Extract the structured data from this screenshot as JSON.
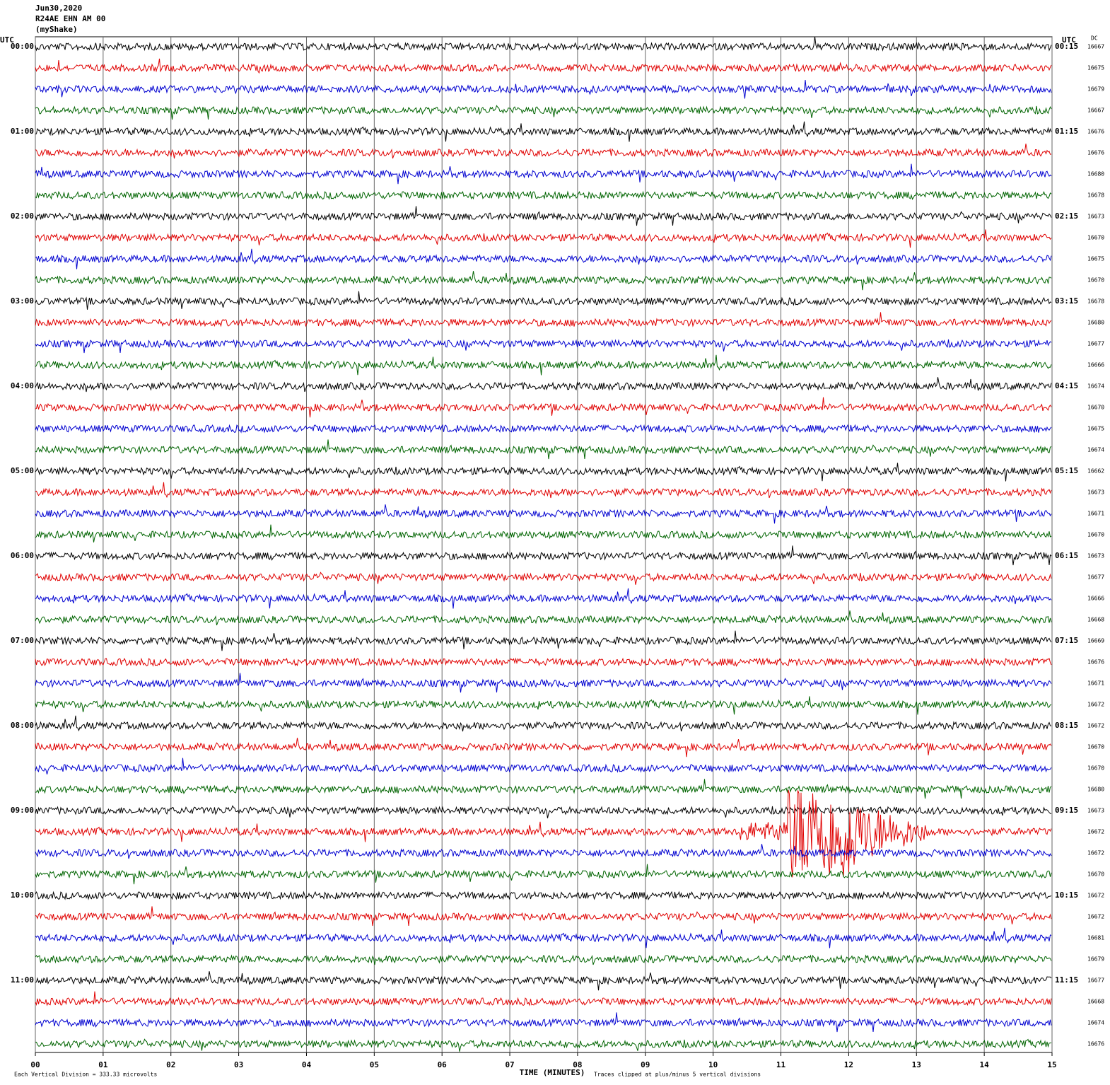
{
  "header": {
    "date": "Jun30,2020",
    "station": "R24AE EHN AM 00",
    "network": "(myShake)"
  },
  "left_axis": {
    "title": "UTC",
    "labels": [
      "00:00",
      "01:00",
      "02:00",
      "03:00",
      "04:00",
      "05:00",
      "06:00",
      "07:00",
      "08:00",
      "09:00",
      "10:00",
      "11:00"
    ]
  },
  "right_axis": {
    "title": "UTC",
    "labels": [
      "00:15",
      "01:15",
      "02:15",
      "03:15",
      "04:15",
      "05:15",
      "06:15",
      "07:15",
      "08:15",
      "09:15",
      "10:15",
      "11:15"
    ],
    "dc_title": "DC",
    "dc_values": [
      16667,
      16675,
      16679,
      16667,
      16676,
      16676,
      16680,
      16678,
      16673,
      16670,
      16675,
      16670,
      16678,
      16680,
      16677,
      16666,
      16674,
      16670,
      16675,
      16674,
      16662,
      16673,
      16671,
      16670,
      16673,
      16677,
      16666,
      16668,
      16669,
      16676,
      16671,
      16672,
      16672,
      16670,
      16670,
      16680,
      16673,
      16672,
      16672,
      16670,
      16672,
      16672,
      16681,
      16679,
      16677,
      16668,
      16674,
      16676
    ]
  },
  "x_axis": {
    "title": "TIME (MINUTES)",
    "ticks": [
      "00",
      "01",
      "02",
      "03",
      "04",
      "05",
      "06",
      "07",
      "08",
      "09",
      "10",
      "11",
      "12",
      "13",
      "14",
      "15"
    ]
  },
  "footer": {
    "scale": "Each Vertical Division =  333.33 microvolts",
    "clip": "Traces clipped at plus/minus 5 vertical divisions"
  }
}
